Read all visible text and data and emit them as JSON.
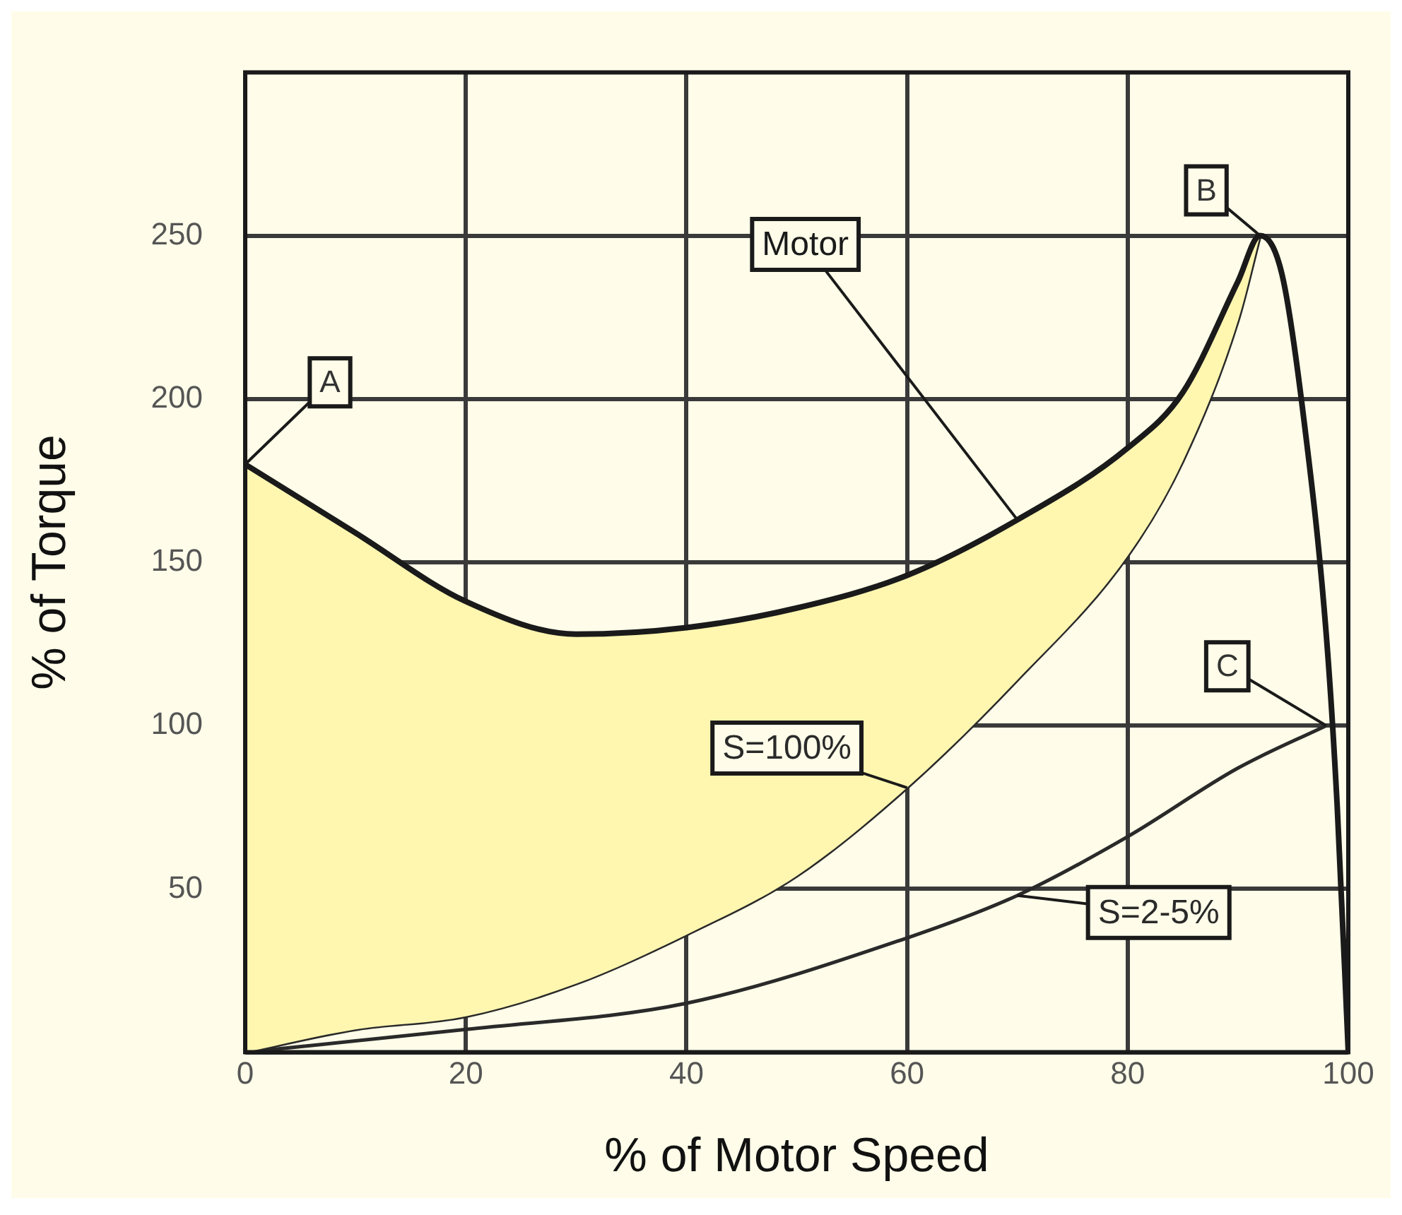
{
  "chart_data": {
    "type": "line",
    "xlabel": "% of Motor Speed",
    "ylabel": "% of Torque",
    "xlim": [
      0,
      100
    ],
    "xticks": [
      0,
      20,
      40,
      60,
      80,
      100
    ],
    "ylim": [
      0,
      300
    ],
    "yticks": [
      {
        "value": 0,
        "label": null
      },
      50,
      100,
      150,
      200,
      250
    ],
    "grid": true,
    "legend": false,
    "marker": "none",
    "line_style": "solid",
    "series": [
      {
        "name": "Motor",
        "color": "#1a1a1a",
        "x": [
          0,
          10,
          20,
          30,
          40,
          50,
          60,
          70,
          80,
          85,
          90,
          92,
          94,
          96,
          98,
          99,
          100
        ],
        "values": [
          180,
          159,
          138,
          128,
          130,
          136,
          146,
          163,
          185,
          202,
          236,
          250,
          238,
          193,
          128,
          75,
          0
        ],
        "lower": [
          0,
          7,
          11,
          21,
          36,
          54,
          81,
          114,
          152,
          181,
          224,
          250,
          null,
          null,
          null,
          null,
          null
        ],
        "upper": [
          180,
          159,
          138,
          128,
          130,
          136,
          146,
          163,
          185,
          202,
          236,
          250,
          null,
          null,
          null,
          null,
          null
        ]
      },
      {
        "name": "S=100%",
        "color": "#2a2a2a",
        "x": [
          0,
          10,
          20,
          30,
          40,
          50,
          60,
          70,
          80,
          85,
          90,
          92
        ],
        "values": [
          0,
          7,
          11,
          21,
          36,
          54,
          81,
          114,
          152,
          181,
          224,
          250
        ]
      },
      {
        "name": "S=2-5%",
        "color": "#2a2a2a",
        "x": [
          0,
          20,
          40,
          60,
          70,
          80,
          90,
          98
        ],
        "values": [
          0,
          7,
          15,
          35,
          48,
          66,
          87,
          100
        ]
      }
    ],
    "annotations": [
      {
        "text": "A",
        "x": 0,
        "y": 180
      },
      {
        "text": "B",
        "x": 92,
        "y": 250
      },
      {
        "text": "C",
        "x": 98,
        "y": 100
      }
    ]
  }
}
